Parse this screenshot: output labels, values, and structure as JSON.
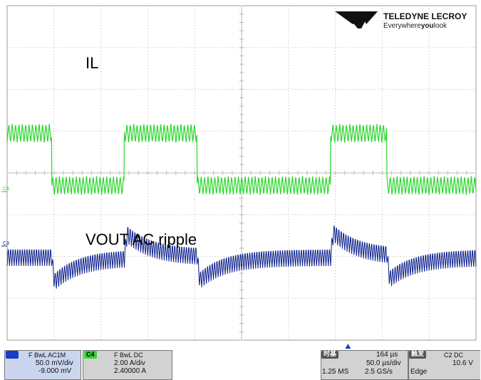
{
  "brand": {
    "name": "TELEDYNE LECROY",
    "tagline": "Everywhereyoulook",
    "tagline_pre": "Everywhere",
    "tagline_bold": "you",
    "tagline_post": "look"
  },
  "colors": {
    "il_trace": "#2bd62b",
    "vout_trace": "#0c1f8c",
    "grid": "#b9b9b9",
    "border": "#9a9a9a",
    "c3_tag_bg": "#1a3cc8",
    "c4_tag_bg": "#3ad23a"
  },
  "chart_data": {
    "type": "line",
    "grid": true,
    "divisions": {
      "x": 10,
      "y": 8
    },
    "timebase": "50.0 µs/div",
    "trigger_position_div": 7.27,
    "annotations": [
      "IL",
      "VOUT AC ripple"
    ],
    "series": [
      {
        "name": "IL",
        "channel": "C4",
        "scale": "2.00 A/div",
        "offset": "2.40000 A",
        "coupling": "DC",
        "ground_marker_div": 3.55,
        "low_level_div": 3.7,
        "high_level_div": 4.95,
        "ripple_pp_div": 0.45,
        "rise_times_div": [
          2.5,
          6.9
        ],
        "fall_times_div": [
          0.95,
          4.05,
          8.1
        ]
      },
      {
        "name": "VOUT AC ripple",
        "channel": "C3",
        "scale": "50.0 mV/div",
        "offset": "-9.000 mV",
        "coupling": "AC1M",
        "ground_marker_div": 2.25,
        "baseline_div": 2.0,
        "overshoot_at_rise_div": 0.65,
        "undershoot_at_fall_div": -0.65,
        "ripple_pp_div": 0.45,
        "recovery_tau_div": 0.55
      }
    ]
  },
  "labels": {
    "il": "IL",
    "vout": "VOUT AC ripple",
    "c4_marker": "C4",
    "c3_marker": "C3"
  },
  "ch3": {
    "tag": "C3",
    "line1": "F  BwL  AC1M",
    "line2": "50.0 mV/div",
    "line3": "-9.000 mV"
  },
  "ch4": {
    "tag": "C4",
    "line1": "F  BwL  DC",
    "line2": "2.00 A/div",
    "line3": "2.40000 A"
  },
  "timebase": {
    "title": "时基",
    "delay": "164 µs",
    "per_div": "50.0 µs/div",
    "samples": "1.25 MS",
    "rate": "2.5 GS/s"
  },
  "trigger": {
    "title": "触发",
    "source": "C2  DC",
    "level": "10.6 V",
    "type": "Edge"
  }
}
